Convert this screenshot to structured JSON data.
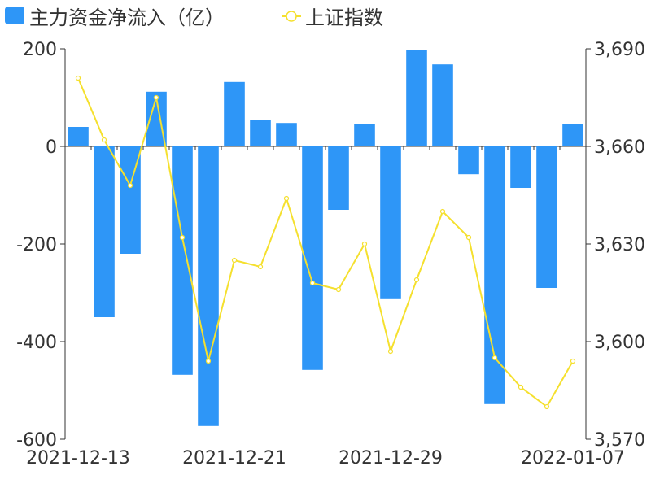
{
  "chart_data": {
    "type": "bar+line",
    "legend": [
      {
        "name": "主力资金净流入（亿）",
        "color": "#2e96f7",
        "symbol": "bar",
        "placement": "top-left"
      },
      {
        "name": "上证指数",
        "color": "#f5e02e",
        "symbol": "line-circle",
        "placement": "top-left"
      }
    ],
    "x_ticks": [
      "2021-12-13",
      "2021-12-21",
      "2021-12-29",
      "2022-01-07"
    ],
    "left_axis": {
      "ylim": [
        -600,
        200
      ],
      "ticks": [
        "200",
        "0",
        "-200",
        "-400",
        "-600"
      ]
    },
    "right_axis": {
      "ylim": [
        3570,
        3690
      ],
      "ticks": [
        "3,690",
        "3,660",
        "3,630",
        "3,600",
        "3,570"
      ]
    },
    "series": [
      {
        "name": "主力资金净流入（亿）",
        "axis": "left",
        "type": "bar",
        "color": "#2e96f7",
        "values": [
          40,
          -350,
          -220,
          112,
          -468,
          -573,
          132,
          55,
          48,
          -458,
          -130,
          45,
          -313,
          198,
          168,
          -57,
          -528,
          -85,
          -290,
          45
        ]
      },
      {
        "name": "上证指数",
        "axis": "right",
        "type": "line",
        "color": "#f5e02e",
        "values": [
          3681,
          3662,
          3648,
          3675,
          3632,
          3594,
          3625,
          3623,
          3644,
          3618,
          3616,
          3630,
          3597,
          3619,
          3640,
          3632,
          3595,
          3586,
          3580,
          3594
        ]
      }
    ]
  }
}
